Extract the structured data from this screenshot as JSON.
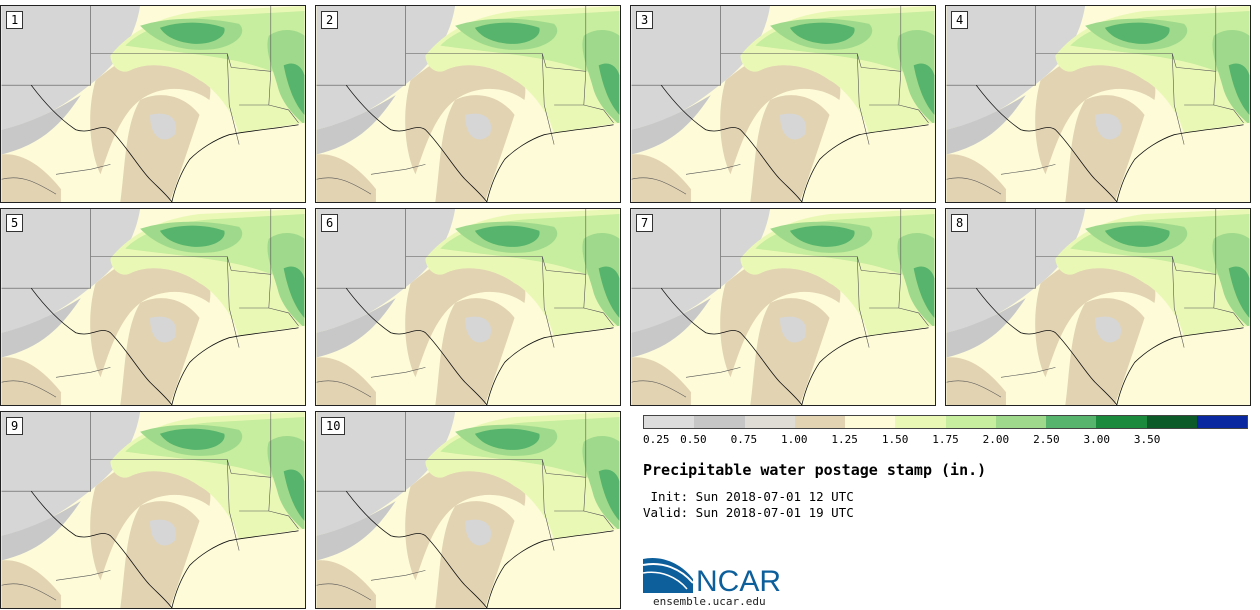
{
  "panels": [
    {
      "label": "1"
    },
    {
      "label": "2"
    },
    {
      "label": "3"
    },
    {
      "label": "4"
    },
    {
      "label": "5"
    },
    {
      "label": "6"
    },
    {
      "label": "7"
    },
    {
      "label": "8"
    },
    {
      "label": "9"
    },
    {
      "label": "10"
    }
  ],
  "colorbar": {
    "tick_labels": [
      "0.25",
      "0.50",
      "0.75",
      "1.00",
      "1.25",
      "1.50",
      "1.75",
      "2.00",
      "2.50",
      "3.00",
      "3.50"
    ],
    "colors": [
      "#dcdcdc",
      "#c6c6c6",
      "#dfdcd6",
      "#e2d3b2",
      "#fdfbd8",
      "#eaf8b6",
      "#c7ed9e",
      "#9fd98b",
      "#56b46c",
      "#1c8a3c",
      "#0b5a28",
      "#0a28a0"
    ]
  },
  "title": "Precipitable water postage stamp (in.)",
  "init_line": " Init: Sun 2018-07-01 12 UTC",
  "valid_line": "Valid: Sun 2018-07-01 19 UTC",
  "logo": {
    "text": "NCAR",
    "url": "ensemble.ucar.edu"
  }
}
